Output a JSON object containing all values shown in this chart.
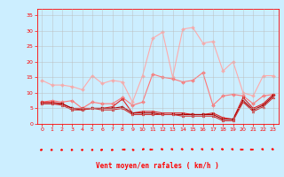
{
  "x": [
    0,
    1,
    2,
    3,
    4,
    5,
    6,
    7,
    8,
    9,
    10,
    11,
    12,
    13,
    14,
    15,
    16,
    17,
    18,
    19,
    20,
    21,
    22,
    23
  ],
  "series": [
    {
      "name": "gust_max",
      "color": "#ffaaaa",
      "linewidth": 0.8,
      "marker": "D",
      "markersize": 2.0,
      "values": [
        14,
        12.5,
        12.5,
        12,
        11,
        15.5,
        13,
        14,
        13.5,
        7,
        15.5,
        27.5,
        29.5,
        15,
        30.5,
        31,
        26,
        26.5,
        17,
        20,
        10,
        9,
        15.5,
        15.5
      ]
    },
    {
      "name": "gust_avg",
      "color": "#ff7777",
      "linewidth": 0.8,
      "marker": "D",
      "markersize": 2.0,
      "values": [
        7,
        7.5,
        7,
        7.5,
        5,
        7,
        6.5,
        6.5,
        8.5,
        6,
        7,
        16,
        15,
        14.5,
        13.5,
        14,
        16.5,
        6,
        9,
        9.5,
        9,
        6.5,
        9,
        9.5
      ]
    },
    {
      "name": "wind_max",
      "color": "#dd2222",
      "linewidth": 0.8,
      "marker": "o",
      "markersize": 2.0,
      "values": [
        7,
        7,
        6.5,
        5,
        5,
        5,
        5,
        5.5,
        8,
        3.5,
        4,
        4,
        3.5,
        3.5,
        3.5,
        3,
        3,
        3.5,
        2,
        1.5,
        8.5,
        5,
        6.5,
        9.5
      ]
    },
    {
      "name": "wind_avg",
      "color": "#aa0000",
      "linewidth": 0.8,
      "marker": "s",
      "markersize": 1.8,
      "values": [
        6.5,
        6.5,
        6.5,
        5,
        4.5,
        5,
        5,
        5,
        5.5,
        3.5,
        3.5,
        3.5,
        3,
        3,
        3,
        3,
        3,
        3,
        1.5,
        1.5,
        7.5,
        4.5,
        6,
        9
      ]
    },
    {
      "name": "wind_min",
      "color": "#cc3333",
      "linewidth": 0.8,
      "marker": "^",
      "markersize": 2.0,
      "values": [
        6.5,
        6.5,
        6,
        4.5,
        4.5,
        5,
        4.5,
        4.5,
        5,
        3,
        3,
        3,
        3,
        3,
        2.5,
        2.5,
        2.5,
        2.5,
        1,
        1,
        7,
        4,
        5.5,
        8.5
      ]
    }
  ],
  "xlim": [
    -0.5,
    23.5
  ],
  "ylim": [
    0,
    37
  ],
  "yticks": [
    0,
    5,
    10,
    15,
    20,
    25,
    30,
    35
  ],
  "xticks": [
    0,
    1,
    2,
    3,
    4,
    5,
    6,
    7,
    8,
    9,
    10,
    11,
    12,
    13,
    14,
    15,
    16,
    17,
    18,
    19,
    20,
    21,
    22,
    23
  ],
  "xlabel": "Vent moyen/en rafales ( km/h )",
  "background_color": "#cceeff",
  "grid_color": "#bbbbbb",
  "tick_color": "#ff0000",
  "label_color": "#ff0000",
  "arrow_angles": [
    225,
    210,
    210,
    195,
    180,
    180,
    225,
    195,
    90,
    135,
    45,
    270,
    315,
    315,
    315,
    315,
    315,
    315,
    315,
    315,
    270,
    270,
    315,
    315
  ]
}
